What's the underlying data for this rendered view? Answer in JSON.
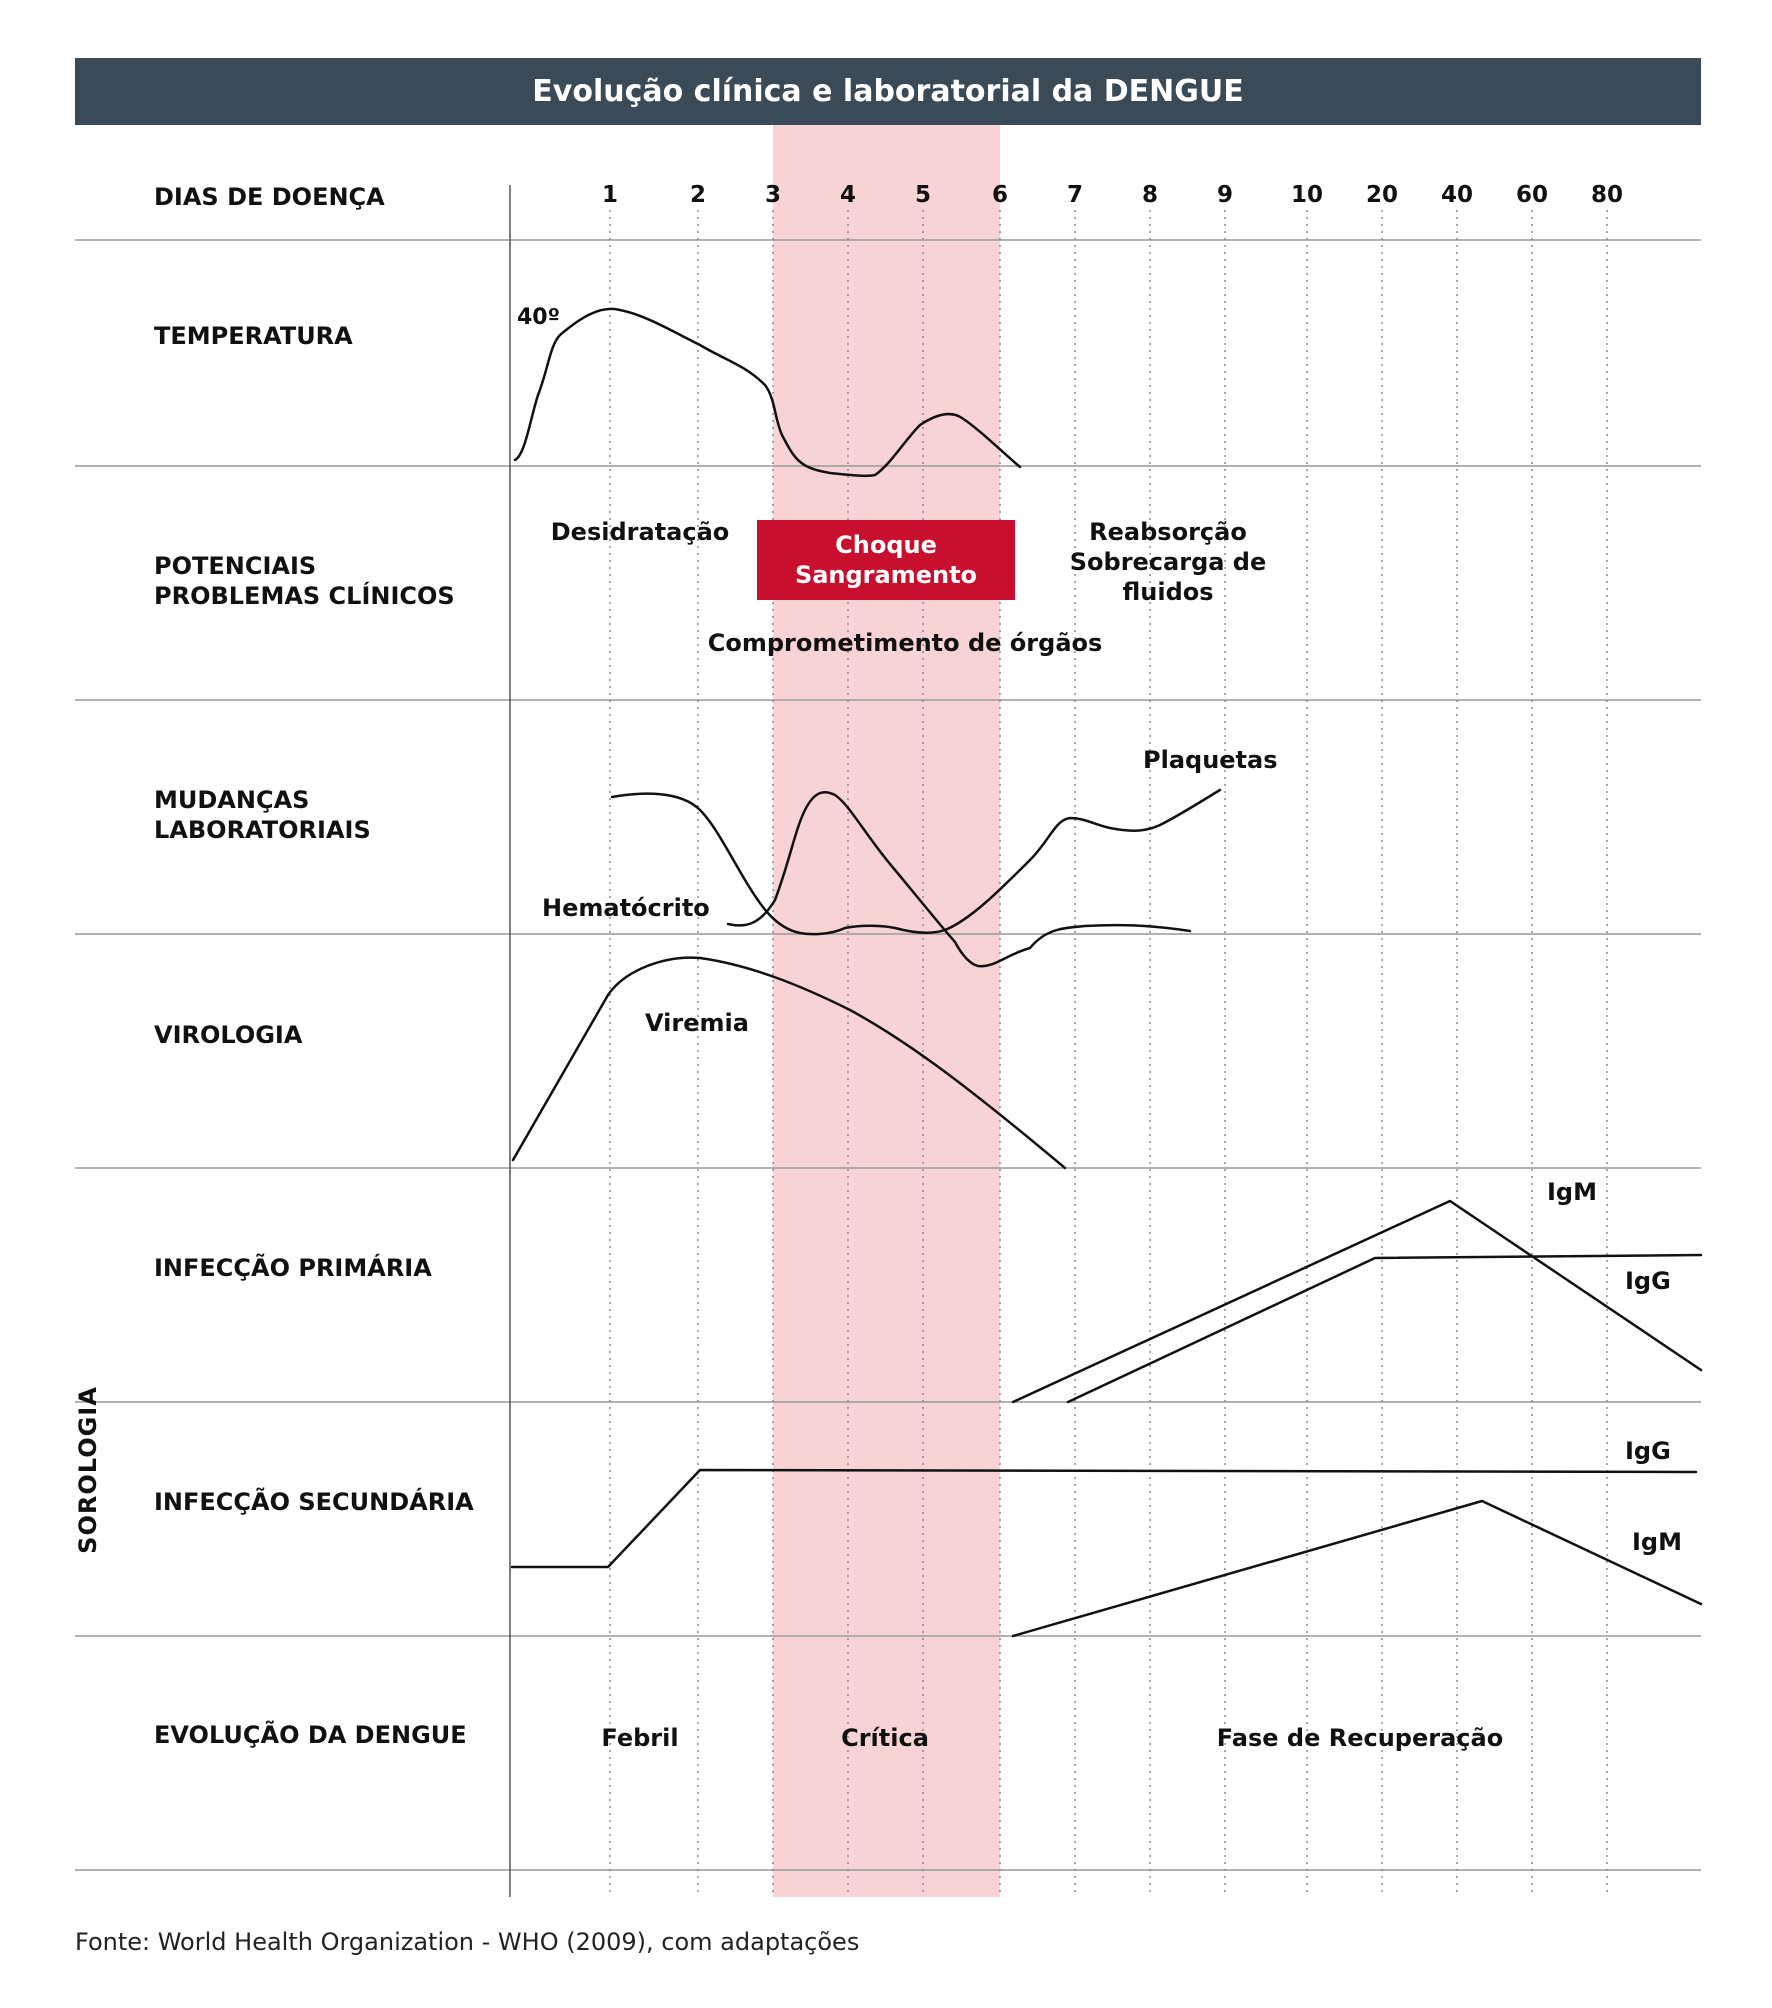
{
  "title": "Evolução clínica e laboratorial da DENGUE",
  "days_label": "DIAS DE DOENÇA",
  "days": [
    "1",
    "2",
    "3",
    "4",
    "5",
    "6",
    "7",
    "8",
    "9",
    "10",
    "20",
    "40",
    "60",
    "80"
  ],
  "rows": {
    "temperatura": "TEMPERATURA",
    "potenciais_l1": "POTENCIAIS",
    "potenciais_l2": "PROBLEMAS CLÍNICOS",
    "mudancas_l1": "MUDANÇAS",
    "mudancas_l2": "LABORATORIAIS",
    "virologia": "VIROLOGIA",
    "primaria": "INFECÇÃO PRIMÁRIA",
    "secundaria": "INFECÇÃO SECUNDÁRIA",
    "evolucao": "EVOLUÇÃO DA DENGUE"
  },
  "sorologia": "SOROLOGIA",
  "temp_mark": "40º",
  "problems": {
    "desidratacao": "Desidratação",
    "choque": "Choque",
    "sangramento": "Sangramento",
    "orgaos": "Comprometimento de órgãos",
    "reabsorcao": "Reabsorção",
    "sobrecarga": "Sobrecarga de",
    "fluidos": "fluidos"
  },
  "lab": {
    "plaquetas": "Plaquetas",
    "hematocrito": "Hematócrito"
  },
  "viremia": "Viremia",
  "primary": {
    "igm": "IgM",
    "igg": "IgG"
  },
  "secondary": {
    "igg": "IgG",
    "igm": "IgM"
  },
  "phases": {
    "febril": "Febril",
    "critica": "Crítica",
    "recuperacao": "Fase de Recuperação"
  },
  "source": "Fonte: World Health Organization - WHO (2009), com adaptações",
  "colors": {
    "title_bg": "#3a4a57",
    "critical_band": "#f8d3d5",
    "shock_box": "#c8102e",
    "grid": "#999999"
  }
}
